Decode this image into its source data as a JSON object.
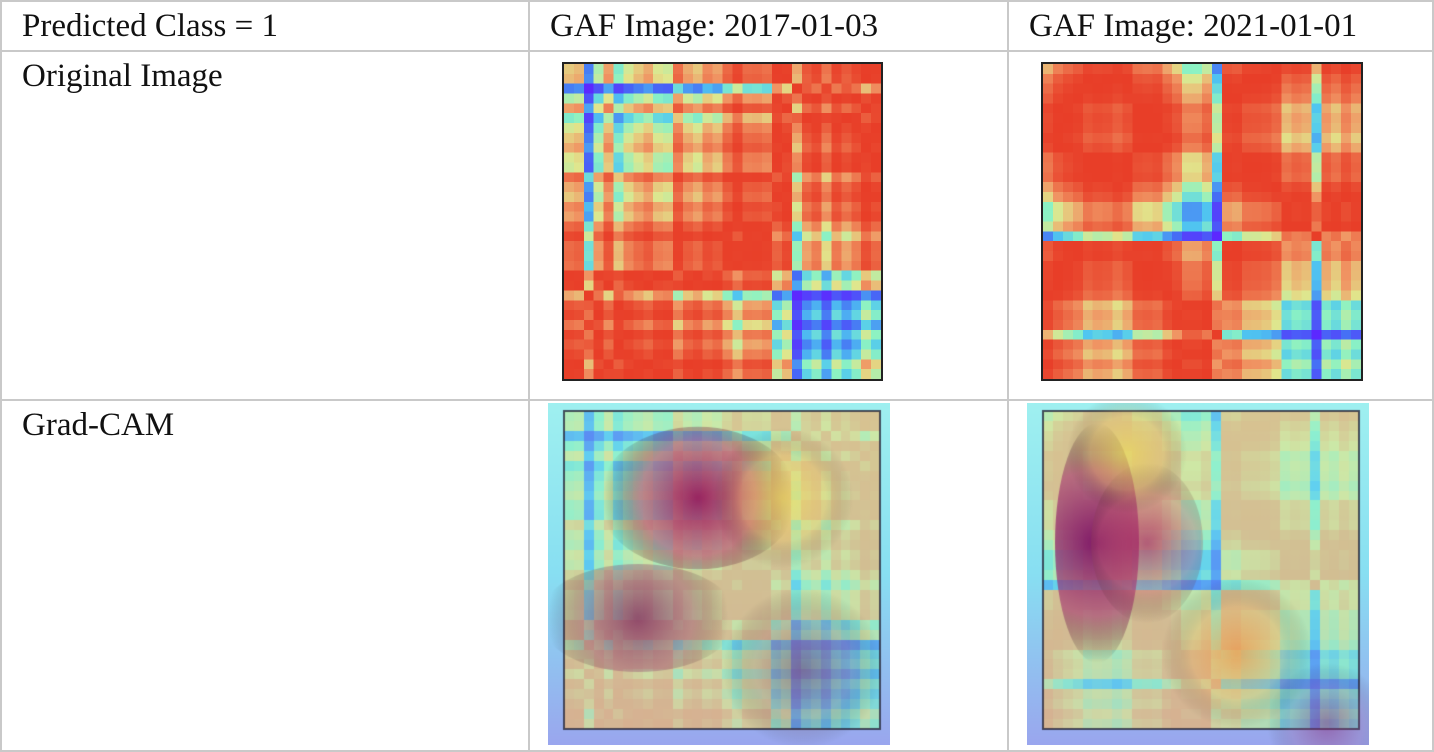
{
  "table": {
    "header": {
      "row_label": "Predicted Class = 1",
      "col_a": "GAF Image: 2017-01-03",
      "col_b": "GAF Image: 2021-01-01"
    },
    "rows": [
      {
        "label": "Original Image"
      },
      {
        "label": "Grad-CAM"
      }
    ]
  },
  "images": {
    "original_2017_icon": "gaf-heatmap-icon",
    "original_2021_icon": "gaf-heatmap-icon",
    "gradcam_2017_icon": "gradcam-overlay-icon",
    "gradcam_2021_icon": "gradcam-overlay-icon"
  },
  "colors": {
    "low": "#5a2cff",
    "mid": "#8ef2c0",
    "high": "#e8402a",
    "cam_hot": "#8a1a5a",
    "border": "#c9c9c9"
  }
}
